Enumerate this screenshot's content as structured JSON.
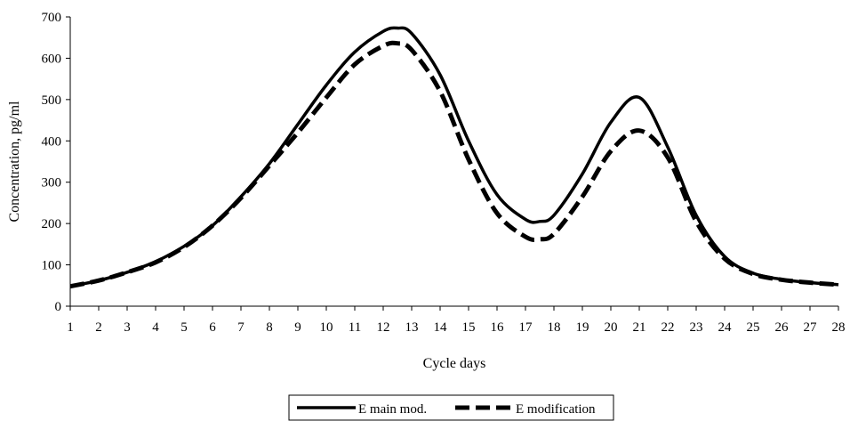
{
  "chart_data": {
    "type": "line",
    "title": "",
    "xlabel": "Cycle days",
    "ylabel": "Concentration, pg/ml",
    "xlim": [
      1,
      28
    ],
    "ylim": [
      0,
      700
    ],
    "x_ticks": [
      "1",
      "2",
      "3",
      "4",
      "5",
      "6",
      "7",
      "8",
      "9",
      "10",
      "11",
      "12",
      "13",
      "14",
      "15",
      "16",
      "17",
      "18",
      "19",
      "20",
      "21",
      "22",
      "23",
      "24",
      "25",
      "26",
      "27",
      "28"
    ],
    "y_ticks": [
      "0",
      "100",
      "200",
      "300",
      "400",
      "500",
      "600",
      "700"
    ],
    "grid": false,
    "legend_position": "bottom",
    "series": [
      {
        "name": "E main mod.",
        "style": "solid",
        "color": "#000000",
        "x": [
          1,
          2,
          3,
          4,
          5,
          6,
          7,
          8,
          9,
          10,
          11,
          12,
          12.5,
          13,
          14,
          15,
          16,
          17,
          17.5,
          18,
          19,
          20,
          21,
          22,
          23,
          24,
          25,
          26,
          27,
          28
        ],
        "values": [
          48,
          62,
          82,
          108,
          145,
          195,
          265,
          345,
          440,
          535,
          615,
          665,
          673,
          660,
          560,
          400,
          270,
          210,
          205,
          220,
          320,
          445,
          505,
          385,
          220,
          120,
          80,
          65,
          57,
          52
        ]
      },
      {
        "name": "E modification",
        "style": "dashed",
        "color": "#000000",
        "x": [
          1,
          2,
          3,
          4,
          5,
          6,
          7,
          8,
          9,
          10,
          11,
          12,
          12.5,
          13,
          14,
          15,
          16,
          17,
          17.5,
          18,
          19,
          20,
          21,
          22,
          23,
          24,
          25,
          26,
          27,
          28
        ],
        "values": [
          48,
          62,
          82,
          106,
          143,
          195,
          262,
          340,
          420,
          505,
          585,
          630,
          636,
          620,
          520,
          355,
          225,
          168,
          162,
          175,
          265,
          375,
          425,
          360,
          205,
          115,
          78,
          64,
          57,
          52
        ]
      }
    ]
  }
}
